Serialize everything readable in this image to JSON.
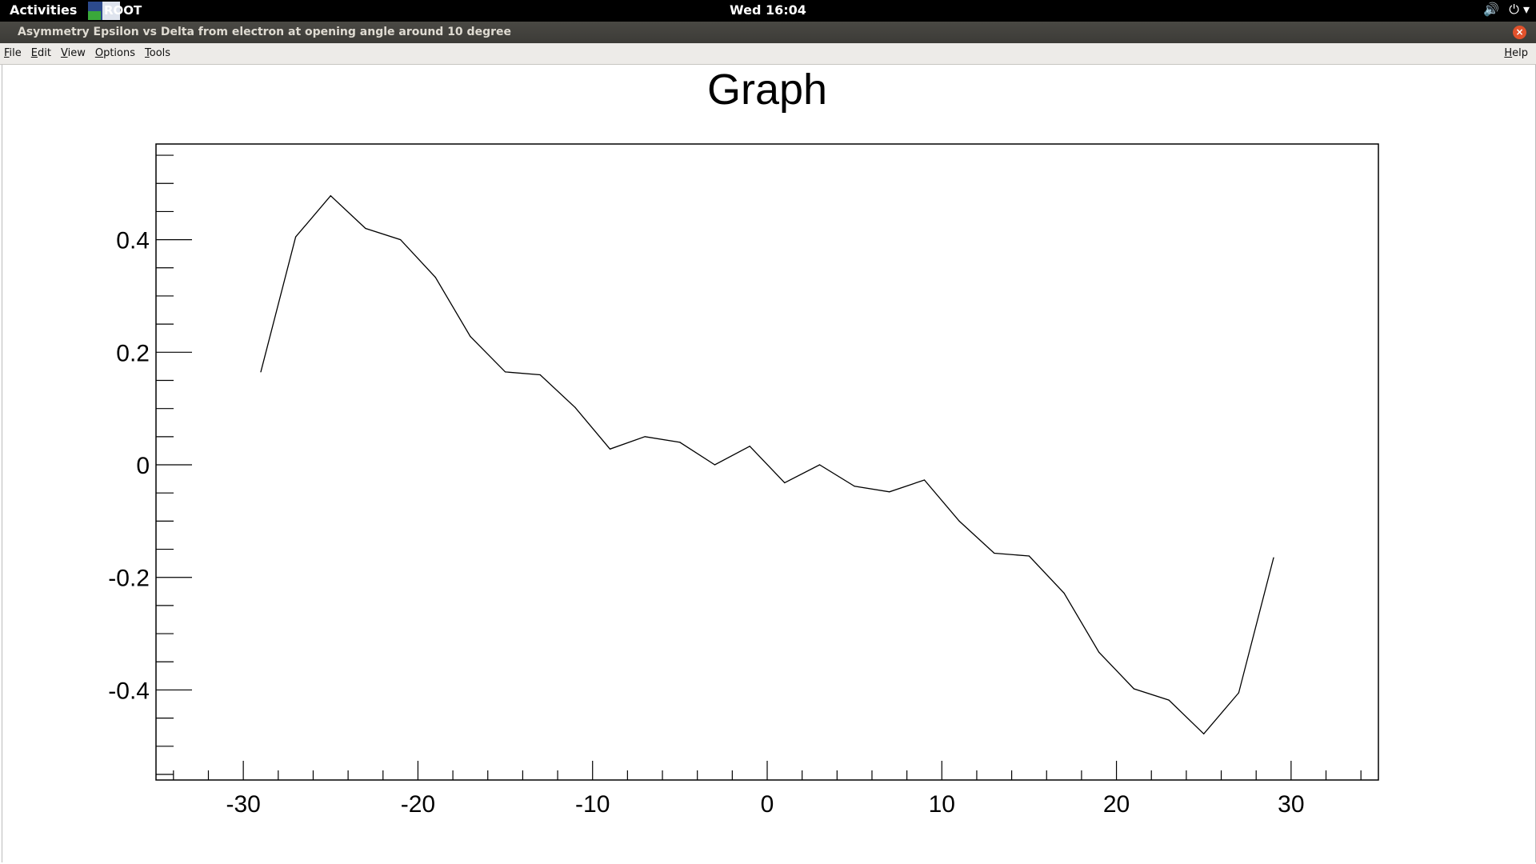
{
  "topbar": {
    "activities": "Activities",
    "app_name": "ROOT ▾",
    "clock": "Wed 16:04",
    "volume_icon": "🔊",
    "power_icon": "⏻ ▾"
  },
  "window": {
    "title": "Asymmetry Epsilon vs Delta from electron at opening angle around 10 degree",
    "close_glyph": "×"
  },
  "menubar": {
    "items": [
      {
        "first": "F",
        "rest": "ile"
      },
      {
        "first": "E",
        "rest": "dit"
      },
      {
        "first": "V",
        "rest": "iew"
      },
      {
        "first": "O",
        "rest": "ptions"
      },
      {
        "first": "T",
        "rest": "ools"
      }
    ],
    "help": {
      "first": "H",
      "rest": "elp"
    }
  },
  "chart_data": {
    "type": "line",
    "title": "Graph",
    "xlabel": "",
    "ylabel": "",
    "xlim": [
      -35,
      35
    ],
    "ylim": [
      -0.56,
      0.57
    ],
    "xticks": [
      -30,
      -20,
      -10,
      0,
      10,
      20,
      30
    ],
    "xtick_labels": [
      "-30",
      "-20",
      "-10",
      "0",
      "10",
      "20",
      "30"
    ],
    "yticks": [
      -0.4,
      -0.2,
      0,
      0.2,
      0.4
    ],
    "ytick_labels": [
      "-0.4",
      "-0.2",
      "0",
      "0.2",
      "0.4"
    ],
    "grid": false,
    "series": [
      {
        "x": [
          -29,
          -27,
          -25,
          -23,
          -21,
          -19,
          -17,
          -15,
          -13,
          -11,
          -9,
          -7,
          -5,
          -3,
          -1,
          1,
          3,
          5,
          7,
          9,
          11,
          13,
          15,
          17,
          19,
          21,
          23,
          25,
          27,
          29
        ],
        "y": [
          0.165,
          0.405,
          0.478,
          0.42,
          0.4,
          0.333,
          0.228,
          0.165,
          0.16,
          0.102,
          0.028,
          0.05,
          0.04,
          0.0,
          0.033,
          -0.032,
          0.0,
          -0.038,
          -0.048,
          -0.027,
          -0.1,
          -0.157,
          -0.162,
          -0.228,
          -0.333,
          -0.398,
          -0.418,
          -0.478,
          -0.405,
          -0.165
        ]
      }
    ]
  }
}
